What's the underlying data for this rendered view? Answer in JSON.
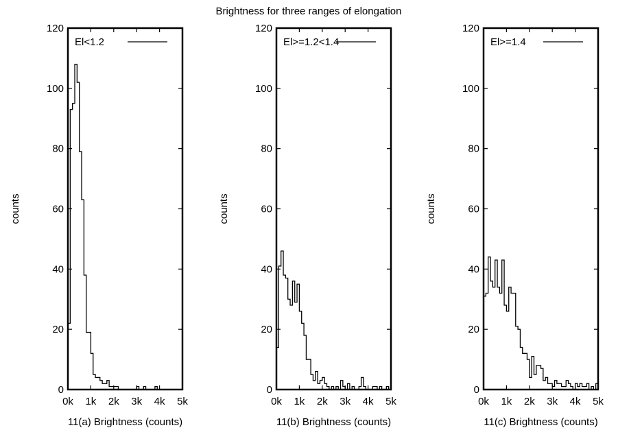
{
  "figure": {
    "title": "Brightness for three ranges of elongation"
  },
  "chart_data": [
    {
      "type": "histogram",
      "xlabel": "11(a) Brightness (counts)",
      "ylabel": "counts",
      "xlim": [
        0,
        5000
      ],
      "ylim": [
        0,
        120
      ],
      "xticks": [
        "0k",
        "1k",
        "2k",
        "3k",
        "4k",
        "5k"
      ],
      "yticks": [
        "0",
        "20",
        "40",
        "60",
        "80",
        "100",
        "120"
      ],
      "legend": {
        "label": "El<1.2",
        "position": "top-right"
      },
      "bin_width": 100,
      "x_start": 0,
      "values": [
        22,
        93,
        95,
        108,
        102,
        79,
        63,
        38,
        19,
        19,
        12,
        5,
        4,
        4,
        3,
        2,
        2,
        3,
        1,
        1,
        1,
        1,
        0,
        0,
        0,
        0,
        0,
        0,
        0,
        0,
        1,
        0,
        0,
        1,
        0,
        0,
        0,
        0,
        1,
        0,
        0,
        0,
        0,
        0,
        0,
        0,
        0,
        0,
        0,
        0
      ]
    },
    {
      "type": "histogram",
      "xlabel": "11(b) Brightness (counts)",
      "ylabel": "counts",
      "xlim": [
        0,
        5000
      ],
      "ylim": [
        0,
        120
      ],
      "xticks": [
        "0k",
        "1k",
        "2k",
        "3k",
        "4k",
        "5k"
      ],
      "yticks": [
        "0",
        "20",
        "40",
        "60",
        "80",
        "100",
        "120"
      ],
      "legend": {
        "label": "El>=1.2<1.4",
        "position": "top-right"
      },
      "bin_width": 100,
      "x_start": 0,
      "values": [
        14,
        41,
        46,
        38,
        37,
        30,
        28,
        36,
        29,
        35,
        26,
        22,
        18,
        10,
        10,
        5,
        3,
        6,
        2,
        3,
        4,
        2,
        1,
        0,
        1,
        0,
        1,
        0,
        3,
        1,
        0,
        2,
        0,
        1,
        0,
        0,
        1,
        4,
        1,
        0,
        0,
        0,
        1,
        1,
        0,
        1,
        0,
        0,
        1,
        0
      ]
    },
    {
      "type": "histogram",
      "xlabel": "11(c) Brightness (counts)",
      "ylabel": "counts",
      "xlim": [
        0,
        5000
      ],
      "ylim": [
        0,
        120
      ],
      "xticks": [
        "0k",
        "1k",
        "2k",
        "3k",
        "4k",
        "5k"
      ],
      "yticks": [
        "0",
        "20",
        "40",
        "60",
        "80",
        "100",
        "120"
      ],
      "legend": {
        "label": "El>=1.4",
        "position": "top-right"
      },
      "bin_width": 100,
      "x_start": 0,
      "values": [
        31,
        32,
        44,
        36,
        34,
        43,
        34,
        32,
        43,
        28,
        26,
        34,
        32,
        32,
        21,
        20,
        14,
        12,
        12,
        10,
        4,
        11,
        5,
        8,
        8,
        7,
        3,
        4,
        2,
        2,
        1,
        3,
        2,
        2,
        1,
        1,
        3,
        2,
        1,
        0,
        2,
        1,
        2,
        1,
        1,
        2,
        0,
        1,
        0,
        2
      ]
    }
  ]
}
